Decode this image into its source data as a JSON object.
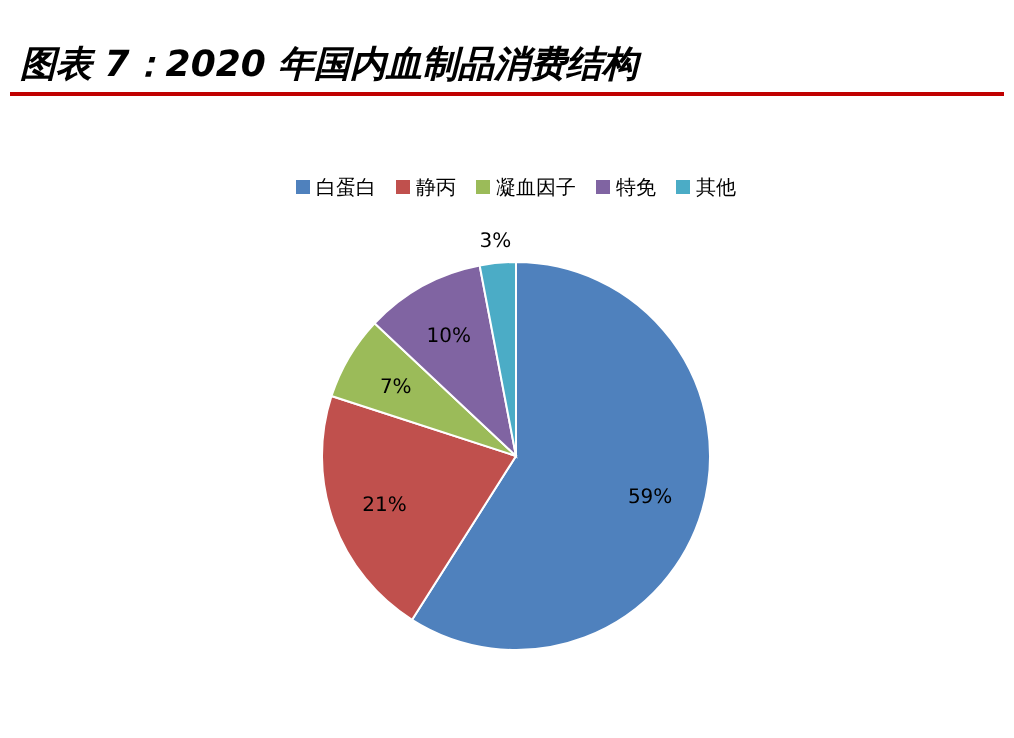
{
  "chart_data": {
    "type": "pie",
    "title": "图表 7：2020 年国内血制品消费结构",
    "categories": [
      "白蛋白",
      "静丙",
      "凝血因子",
      "特免",
      "其他"
    ],
    "values": [
      59,
      21,
      7,
      10,
      3
    ],
    "colors": [
      "#4f81bd",
      "#c0504d",
      "#9bbb59",
      "#8064a2",
      "#4bacc6"
    ],
    "value_labels": [
      "59%",
      "21%",
      "7%",
      "10%",
      "3%"
    ],
    "legend": "top"
  }
}
